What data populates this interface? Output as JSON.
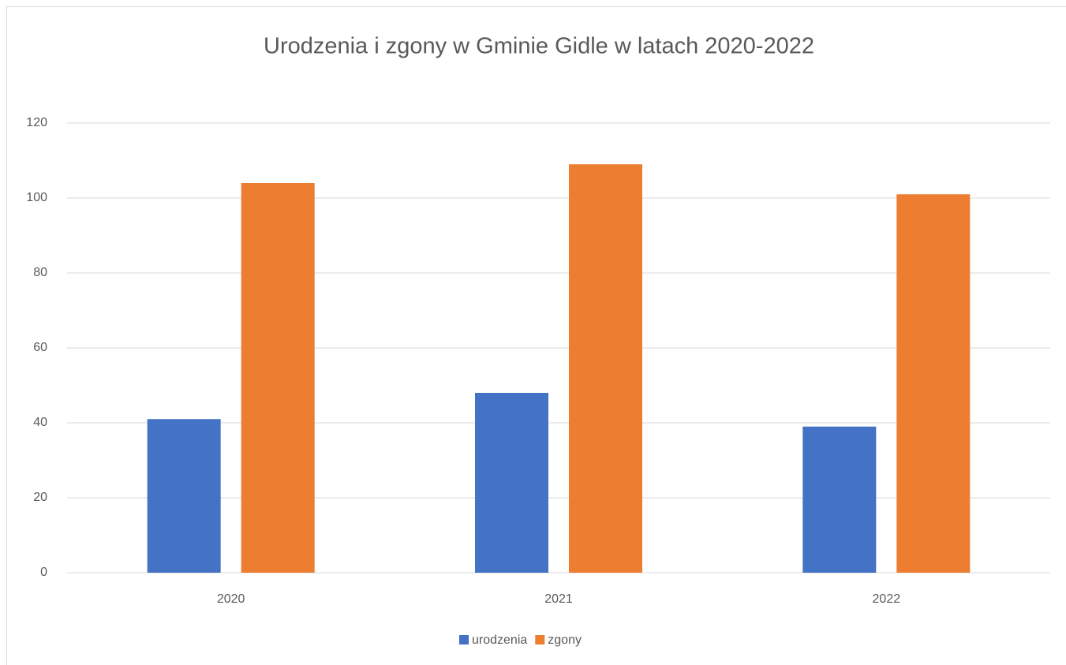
{
  "chart_data": {
    "type": "bar",
    "title": "Urodzenia i zgony w Gminie Gidle w latach 2020-2022",
    "categories": [
      "2020",
      "2021",
      "2022"
    ],
    "series": [
      {
        "name": "urodzenia",
        "color": "#4472c4",
        "values": [
          41,
          48,
          39
        ]
      },
      {
        "name": "zgony",
        "color": "#ed7d31",
        "values": [
          104,
          109,
          101
        ]
      }
    ],
    "ylim": [
      0,
      120
    ],
    "yticks": [
      0,
      20,
      40,
      60,
      80,
      100,
      120
    ],
    "grid": true,
    "legend": "bottom"
  }
}
